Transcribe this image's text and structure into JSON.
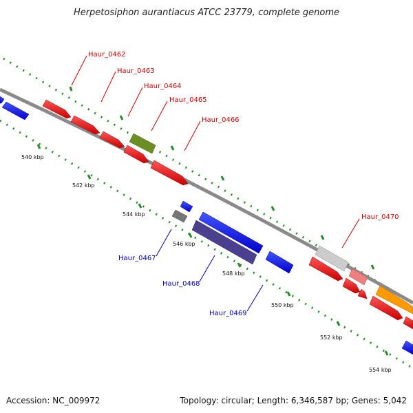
{
  "title": "Herpetosiphon aurantiacus ATCC 23779, complete genome",
  "footer": {
    "accession": "Accession: NC_009972",
    "summary": "Topology: circular; Length: 6,346,587 bp; Genes: 5,042"
  },
  "scale_labels": [
    "540 kbp",
    "542 kbp",
    "544 kbp",
    "546 kbp",
    "548 kbp",
    "550 kbp",
    "552 kbp",
    "554 kbp"
  ],
  "gene_labels_forward": [
    "Haur_0462",
    "Haur_0463",
    "Haur_0464",
    "Haur_0465",
    "Haur_0466",
    "Haur_0470"
  ],
  "gene_labels_reverse": [
    "Haur_0467",
    "Haur_0468",
    "Haur_0469"
  ],
  "colors": {
    "backbone": "#8a8a8a",
    "forward_gene": "#ee1111",
    "reverse_gene": "#1111ee",
    "cds_highlight": "#6b8e23",
    "label_forward": "#cc0000",
    "label_reverse": "#0000aa",
    "tick": "#228b22"
  }
}
